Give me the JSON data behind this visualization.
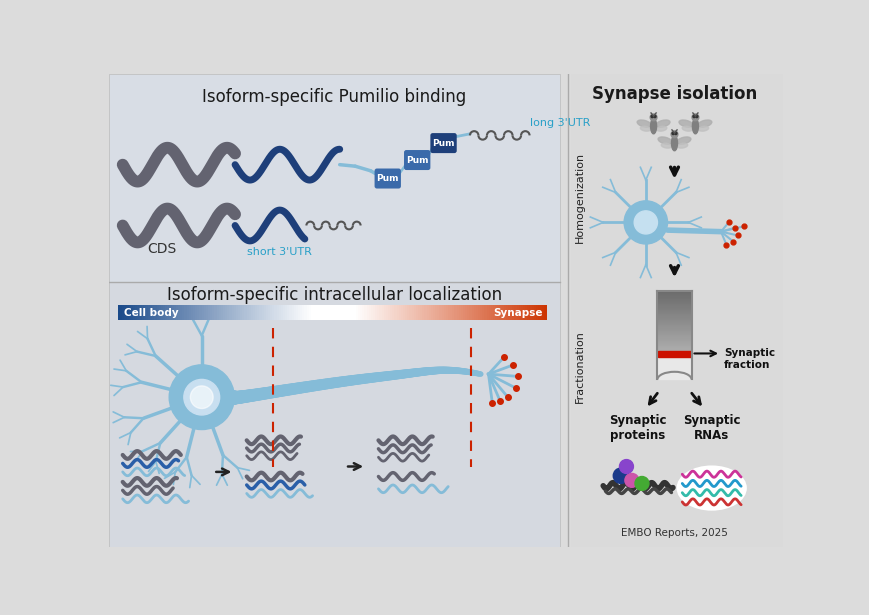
{
  "bg_color": "#dcdcdc",
  "top_left_bg": "#d8dde5",
  "bottom_left_bg": "#d5d9e0",
  "right_bg": "#dadada",
  "top_left_title": "Isoform-specific Pumilio binding",
  "bottom_left_title": "Isoform-specific intracellular localization",
  "right_title": "Synapse isolation",
  "dark_gray": "#636370",
  "dark_blue": "#1e3f7a",
  "mid_blue": "#2a5fa8",
  "light_blue": "#85bcd8",
  "very_light_blue": "#b8d9ed",
  "pum_dark": "#1e3f7a",
  "pum_mid": "#3a6aaa",
  "cyan_label": "#29a0c8",
  "red_dot": "#cc2200",
  "cell_body_blue": "#1a4a8a",
  "synapse_orange": "#cc3300",
  "arrow_color": "#222222",
  "long_3utr_label": "long 3'UTR",
  "short_3utr_label": "short 3'UTR",
  "cds_label": "CDS",
  "pum_label": "Pum",
  "cell_body_label": "Cell body",
  "synapse_label": "Synapse",
  "homogenization_text": "Homogenization",
  "fractionation_text": "Fractionation",
  "synaptic_fraction_text": "Synaptic\nfraction",
  "synaptic_proteins_text": "Synaptic\nproteins",
  "synaptic_rnas_text": "Synaptic\nRNAs",
  "embo_text": "EMBO Reports, 2025"
}
